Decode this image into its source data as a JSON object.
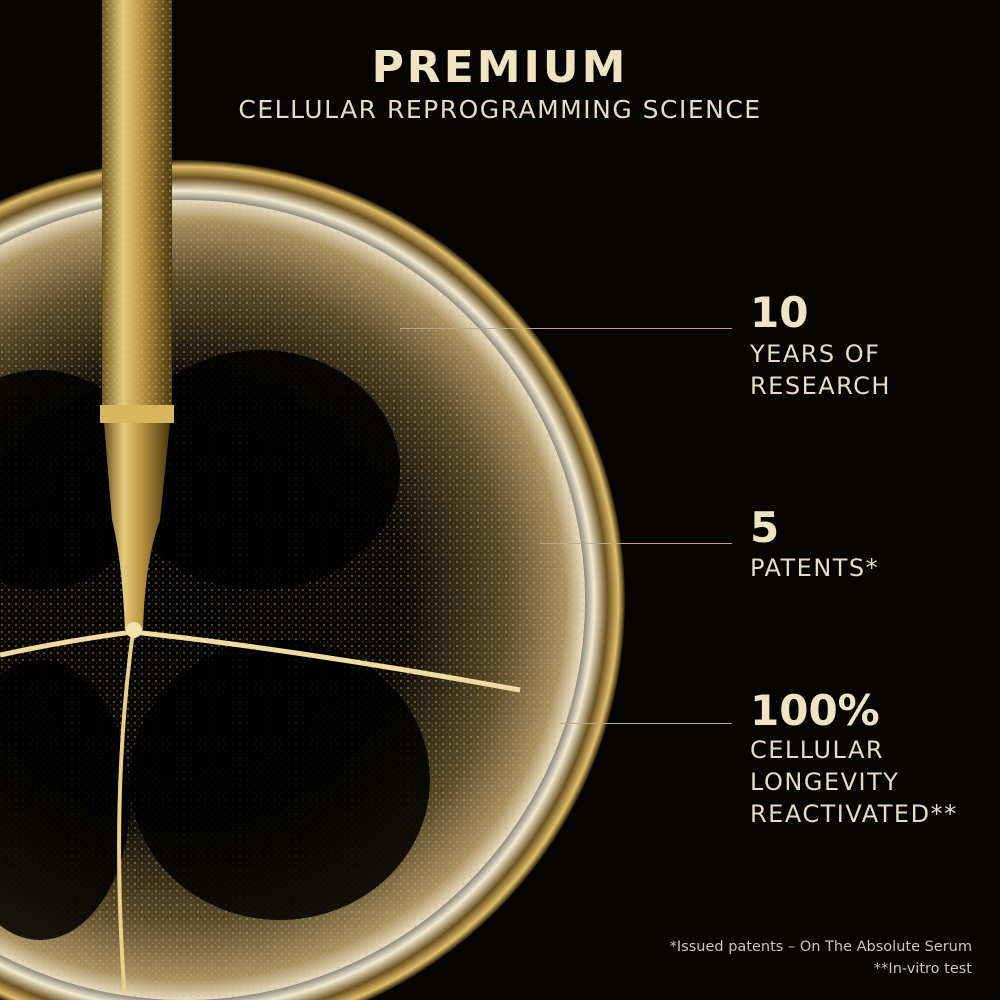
{
  "header": {
    "title": "PREMIUM",
    "subtitle": "CELLULAR REPROGRAMMING SCIENCE"
  },
  "stats": [
    {
      "value": "10",
      "label_lines": [
        "YEARS OF",
        "RESEARCH"
      ]
    },
    {
      "value": "5",
      "label_lines": [
        "PATENTS*"
      ]
    },
    {
      "value": "100%",
      "label_lines": [
        "CELLULAR",
        "LONGEVITY",
        "REACTIVATED**"
      ]
    }
  ],
  "footnotes": [
    "*Issued patents – On The Absolute Serum",
    "**In-vitro test"
  ],
  "colors": {
    "background": "#050403",
    "text": "#efe3c2",
    "gold": "#c9a64a"
  }
}
